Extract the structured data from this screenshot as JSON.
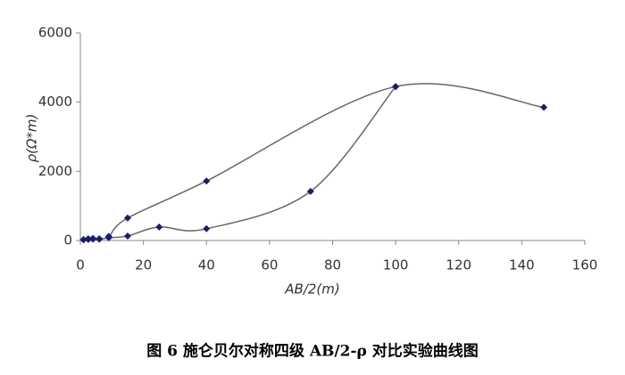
{
  "chart_data": {
    "type": "line",
    "xlabel": "AB/2(m)",
    "ylabel": "ρ(Ω*m)",
    "caption": "图 6 施仑贝尔对称四级 AB/2-ρ 对比实验曲线图",
    "xlim": [
      0,
      160
    ],
    "xticks": [
      0,
      20,
      40,
      60,
      80,
      100,
      120,
      140,
      160
    ],
    "ylim": [
      0,
      6000
    ],
    "yticks": [
      0,
      2000,
      4000,
      6000
    ],
    "grid": false,
    "line_color": "#666666",
    "marker_color": "#1c1c6b",
    "series": [
      {
        "x": [
          1,
          2.5,
          4,
          6,
          9,
          15,
          40,
          100,
          147
        ],
        "values": [
          30,
          50,
          60,
          50,
          120,
          650,
          1720,
          4450,
          3850
        ]
      },
      {
        "x": [
          1,
          2.5,
          4,
          6,
          9,
          15,
          25,
          40,
          73,
          100
        ],
        "values": [
          20,
          30,
          40,
          40,
          80,
          130,
          390,
          340,
          1420,
          4450
        ]
      }
    ]
  }
}
